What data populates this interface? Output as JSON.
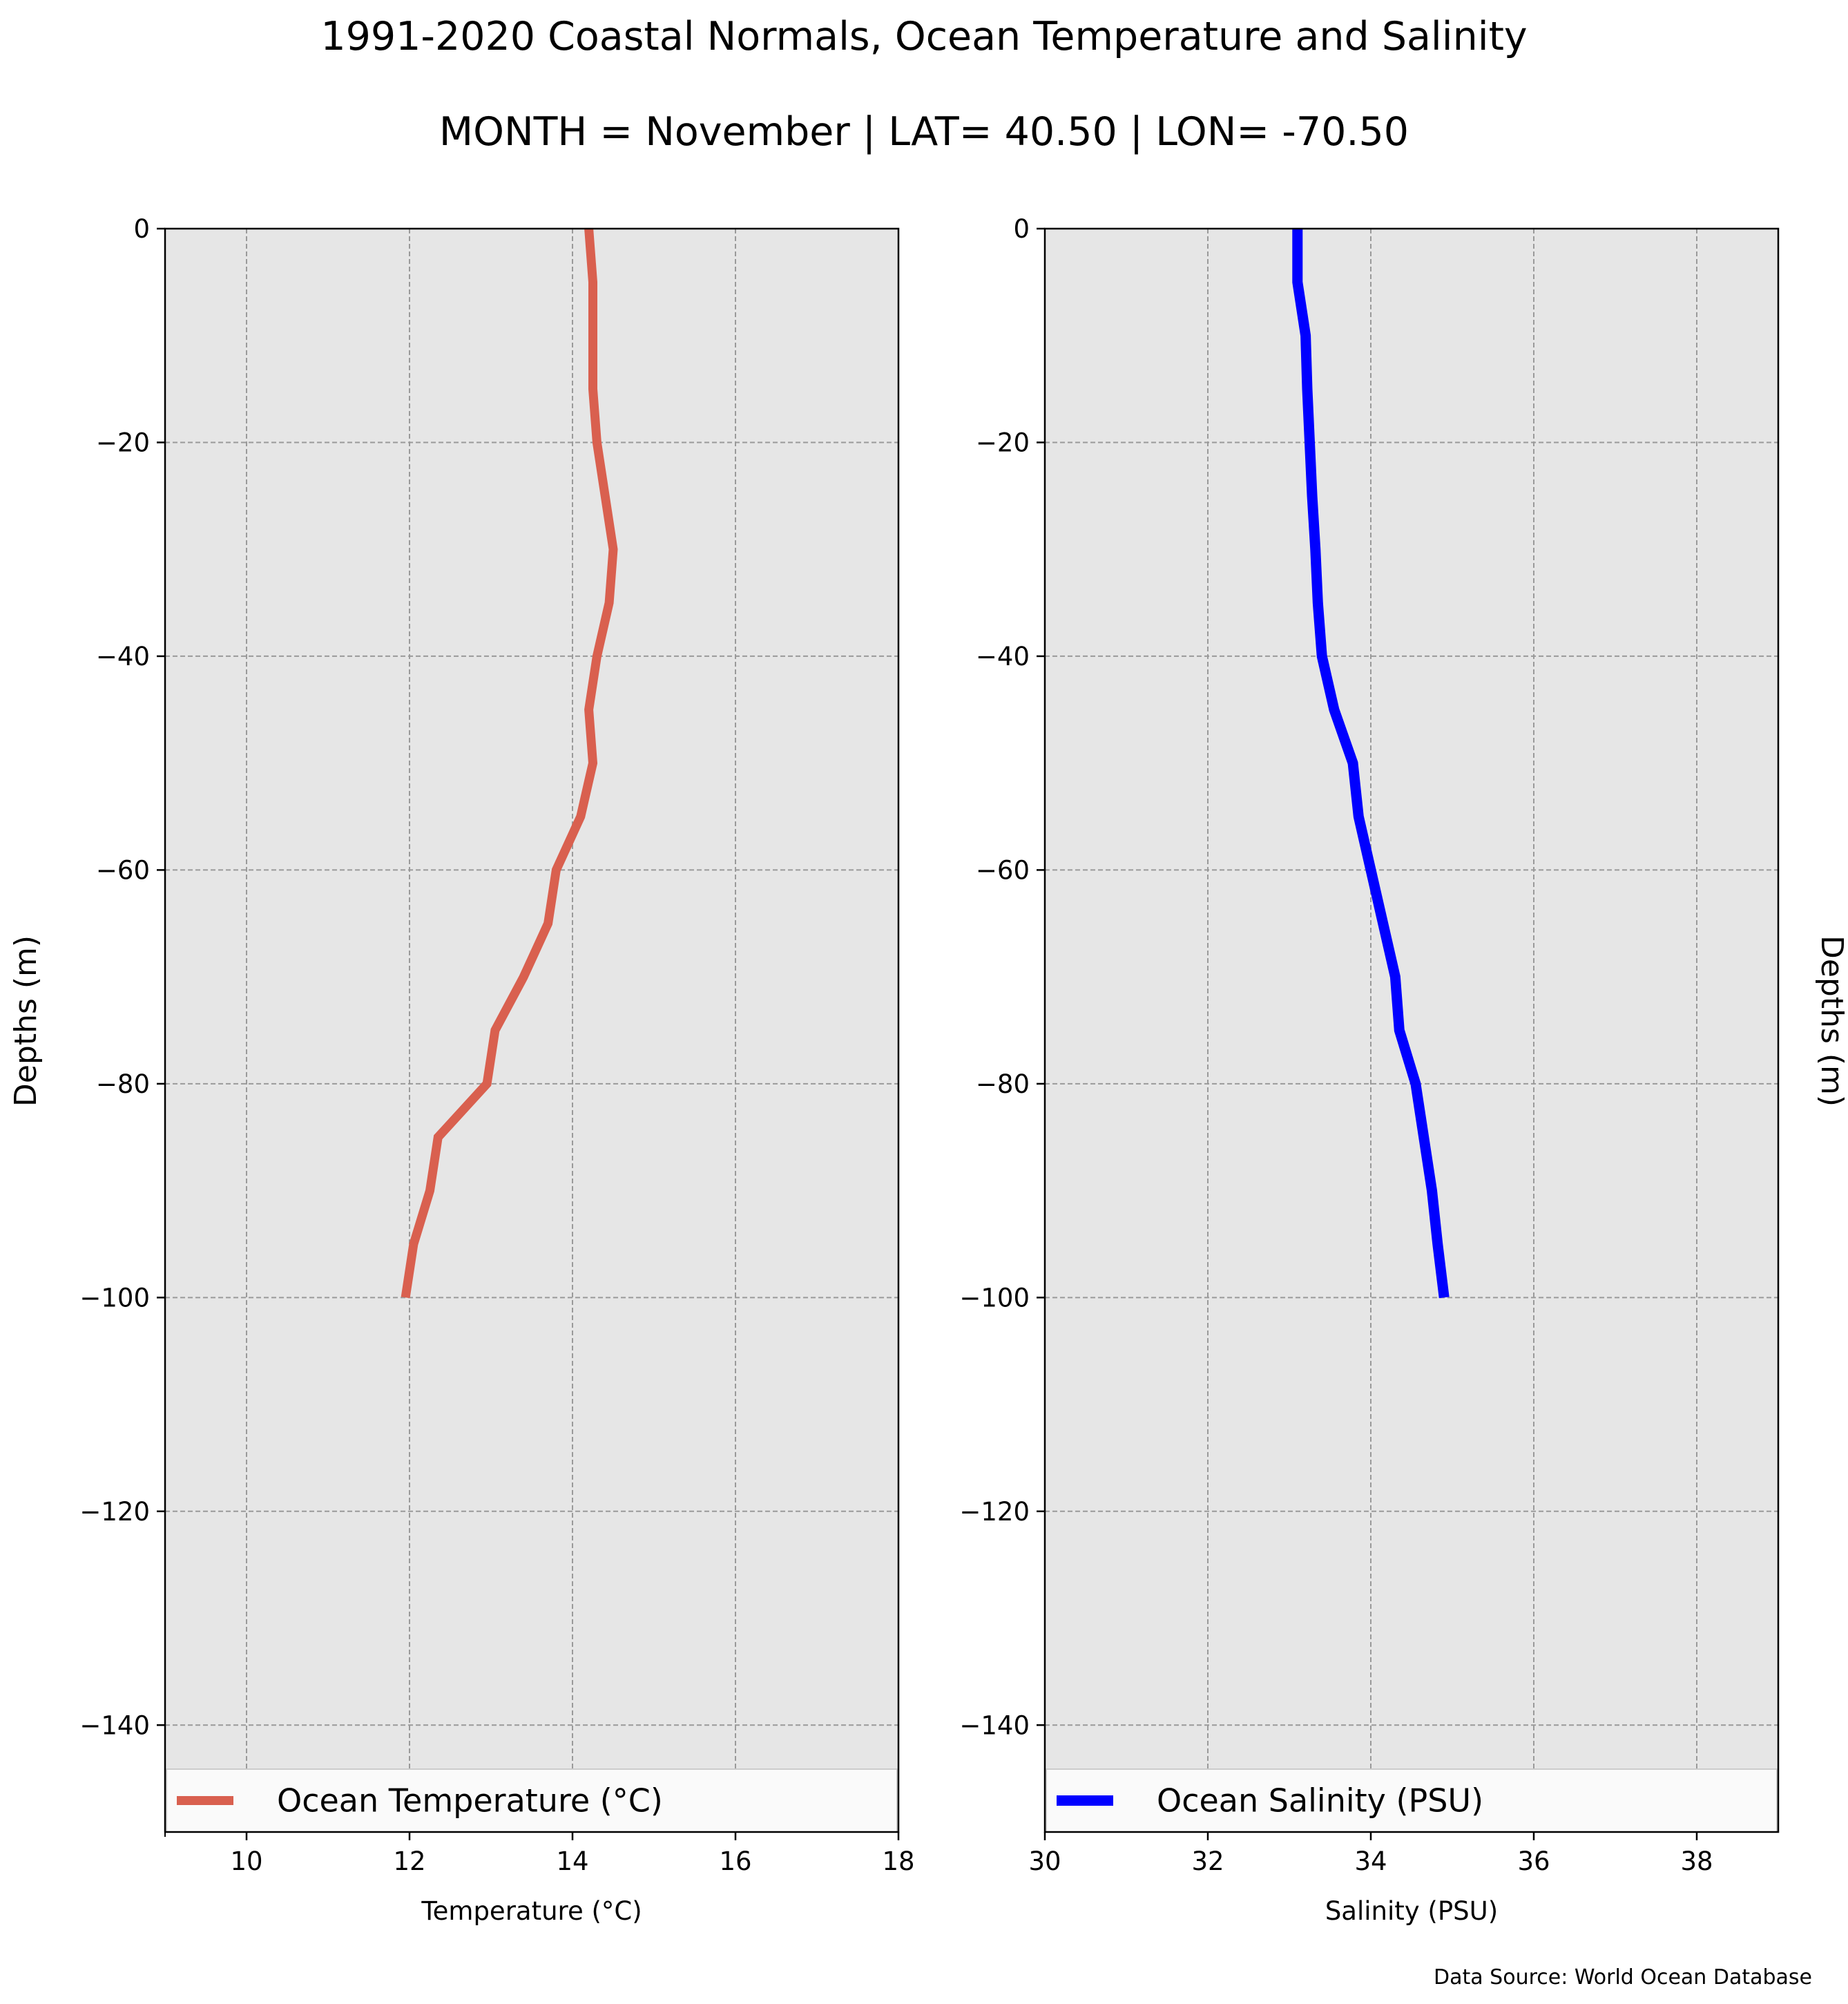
{
  "figure": {
    "title": "1991-2020 Coastal Normals, Ocean Temperature and Salinity",
    "subtitle": "MONTH = November | LAT= 40.50 | LON= -70.50",
    "source": "Data Source: World Ocean Database"
  },
  "chart_data": [
    {
      "type": "line",
      "xlabel": "Temperature ($^\\circ$C)",
      "xlabel_display": "Temperature (°C)",
      "ylabel": "Depths (m)",
      "xlim": [
        9,
        18
      ],
      "ylim": [
        -150,
        0
      ],
      "xticks": [
        10,
        12,
        14,
        16,
        18
      ],
      "yticks": [
        0,
        -20,
        -40,
        -60,
        -80,
        -100,
        -120,
        -140
      ],
      "xtick_labels": [
        "10",
        "12",
        "14",
        "16",
        "18"
      ],
      "ytick_labels": [
        "0",
        "−20",
        "−40",
        "−60",
        "−80",
        "−100",
        "−120",
        "−140"
      ],
      "grid": true,
      "legend_position": "lower",
      "background": "#e6e6e6",
      "series": [
        {
          "name": "Ocean Temperature (°C)",
          "color": "#d9604f",
          "x": [
            14.2,
            14.25,
            14.25,
            14.25,
            14.3,
            14.4,
            14.5,
            14.45,
            14.3,
            14.2,
            14.25,
            14.1,
            13.8,
            13.7,
            13.4,
            13.05,
            12.95,
            12.35,
            12.25,
            12.05,
            11.95
          ],
          "y": [
            0,
            -5,
            -10,
            -15,
            -20,
            -25,
            -30,
            -35,
            -40,
            -45,
            -50,
            -55,
            -60,
            -65,
            -70,
            -75,
            -80,
            -85,
            -90,
            -95,
            -100
          ]
        }
      ]
    },
    {
      "type": "line",
      "xlabel": "Salinity (PSU)",
      "ylabel": "Depths (m)",
      "xlim": [
        30,
        39
      ],
      "ylim": [
        -150,
        0
      ],
      "xticks": [
        30,
        32,
        34,
        36,
        38
      ],
      "yticks": [
        0,
        -20,
        -40,
        -60,
        -80,
        -100,
        -120,
        -140
      ],
      "xtick_labels": [
        "30",
        "32",
        "34",
        "36",
        "38"
      ],
      "ytick_labels": [
        "0",
        "−20",
        "−40",
        "−60",
        "−80",
        "−100",
        "−120",
        "−140"
      ],
      "grid": true,
      "legend_position": "lower",
      "background": "#e6e6e6",
      "series": [
        {
          "name": "Ocean Salinity (PSU)",
          "color": "#0000ff",
          "x": [
            33.1,
            33.1,
            33.2,
            33.22,
            33.25,
            33.28,
            33.32,
            33.35,
            33.4,
            33.55,
            33.78,
            33.85,
            34.0,
            34.15,
            34.3,
            34.35,
            34.55,
            34.65,
            34.75,
            34.82,
            34.9
          ],
          "y": [
            0,
            -5,
            -10,
            -15,
            -20,
            -25,
            -30,
            -35,
            -40,
            -45,
            -50,
            -55,
            -60,
            -65,
            -70,
            -75,
            -80,
            -85,
            -90,
            -95,
            -100
          ]
        }
      ]
    }
  ]
}
